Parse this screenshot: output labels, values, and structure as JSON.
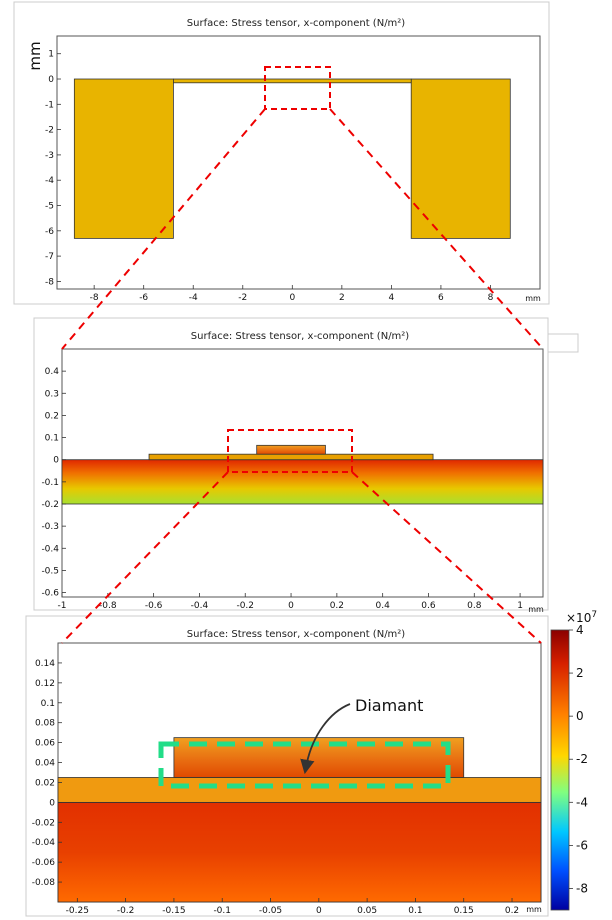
{
  "chart_data": [
    {
      "type": "heatmap",
      "title": "Surface: Stress tensor, x-component (N/m²)",
      "ylabel": "mm",
      "x_unit": "mm",
      "xlim": [
        -9.5,
        10
      ],
      "ylim": [
        -8.3,
        1.7
      ],
      "x_ticks": [
        -8,
        -6,
        -4,
        -2,
        0,
        2,
        4,
        6,
        8
      ],
      "y_ticks": [
        1,
        0,
        -1,
        -2,
        -3,
        -4,
        -5,
        -6,
        -7,
        -8
      ],
      "regions": [
        {
          "name": "left-support",
          "x": [
            -8.8,
            -4.8
          ],
          "y": [
            -6.3,
            0
          ]
        },
        {
          "name": "right-support",
          "x": [
            4.8,
            8.8
          ],
          "y": [
            -6.3,
            0
          ]
        },
        {
          "name": "membrane",
          "x": [
            -4.8,
            4.8
          ],
          "y": [
            -0.15,
            0
          ]
        }
      ],
      "grid": false
    },
    {
      "type": "heatmap",
      "title": "Surface: Stress tensor, x-component (N/m²)",
      "x_unit": "mm",
      "xlim": [
        -1,
        1.1
      ],
      "ylim": [
        -0.62,
        0.5
      ],
      "x_ticks": [
        -1,
        -0.8,
        -0.6,
        -0.4,
        -0.2,
        0,
        0.2,
        0.4,
        0.6,
        0.8,
        1
      ],
      "y_ticks": [
        0.4,
        0.3,
        0.2,
        0.1,
        0,
        -0.1,
        -0.2,
        -0.3,
        -0.4,
        -0.5,
        -0.6
      ],
      "regions": [
        {
          "name": "substrate",
          "x": [
            -1,
            1.1
          ],
          "y": [
            -0.2,
            0
          ]
        },
        {
          "name": "layer",
          "x": [
            -0.62,
            0.62
          ],
          "y": [
            0,
            0.025
          ]
        },
        {
          "name": "diamond",
          "x": [
            -0.15,
            0.15
          ],
          "y": [
            0.025,
            0.065
          ]
        }
      ],
      "grid": false
    },
    {
      "type": "heatmap",
      "title": "Surface: Stress tensor, x-component (N/m²)",
      "x_unit": "mm",
      "xlim": [
        -0.27,
        0.23
      ],
      "ylim": [
        -0.1,
        0.16
      ],
      "x_ticks": [
        -0.25,
        -0.2,
        -0.15,
        -0.1,
        -0.05,
        0,
        0.05,
        0.1,
        0.15,
        0.2
      ],
      "x_tick_labels": [
        "-0.25",
        "-0.2",
        "-0.15",
        "-0.1",
        "-0.05",
        "0",
        "0.05",
        "0.1",
        "0.15",
        "0.2"
      ],
      "y_ticks": [
        0.14,
        0.12,
        0.1,
        0.08,
        0.06,
        0.04,
        0.02,
        0,
        -0.02,
        -0.04,
        -0.06,
        -0.08
      ],
      "regions": [
        {
          "name": "substrate",
          "x": [
            -0.27,
            0.23
          ],
          "y": [
            -0.1,
            0
          ]
        },
        {
          "name": "layer",
          "x": [
            -0.27,
            0.23
          ],
          "y": [
            0,
            0.025
          ]
        },
        {
          "name": "diamond",
          "x": [
            -0.15,
            0.15
          ],
          "y": [
            0.025,
            0.065
          ]
        }
      ],
      "annotation": "Diamant",
      "grid": false,
      "colorbar": {
        "multiplier": "×10",
        "exponent": "7",
        "range": [
          -9,
          4
        ],
        "ticks": [
          4,
          2,
          0,
          -2,
          -4,
          -6,
          -8
        ],
        "colors": [
          "#8b0000",
          "#d62000",
          "#ff8000",
          "#ffd700",
          "#80ff80",
          "#00c8ff",
          "#0050ff",
          "#0000a0"
        ]
      }
    }
  ]
}
